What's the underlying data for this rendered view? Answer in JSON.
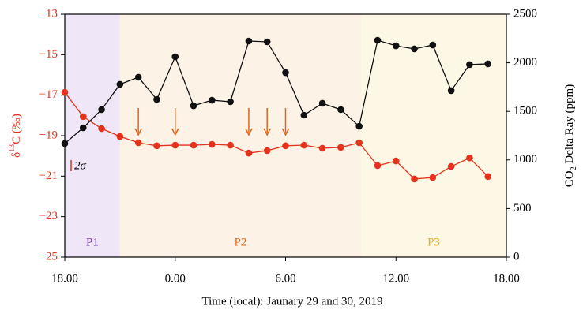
{
  "chart_data": {
    "type": "line",
    "x_label": "Time (local): Jaunary 29 and 30, 2019",
    "y_label": {
      "prefix": "δ",
      "sup": "13",
      "suffix": "C (‰)"
    },
    "y2_label": {
      "prefix": "CO",
      "sub": "2",
      "suffix": " Delta Ray (ppm)"
    },
    "annotation": "2σ",
    "x": [
      0,
      1,
      2,
      3,
      4,
      5,
      6,
      7,
      8,
      9,
      10,
      11,
      12,
      13,
      14,
      15,
      16,
      17,
      18,
      19,
      20,
      21,
      22,
      23
    ],
    "xlim": [
      0,
      24
    ],
    "xticks": [
      {
        "value": 0,
        "label": "18.00"
      },
      {
        "value": 6,
        "label": "0.00"
      },
      {
        "value": 12,
        "label": "6.00"
      },
      {
        "value": 18,
        "label": "12.00"
      },
      {
        "value": 24,
        "label": "18.00"
      }
    ],
    "ylim": [
      -25,
      -13
    ],
    "yticks": [
      {
        "value": -25,
        "label": "−25"
      },
      {
        "value": -23,
        "label": "−23"
      },
      {
        "value": -21,
        "label": "−21"
      },
      {
        "value": -19,
        "label": "−19"
      },
      {
        "value": -17,
        "label": "−17"
      },
      {
        "value": -15,
        "label": "−15"
      },
      {
        "value": -13,
        "label": "−13"
      }
    ],
    "y2lim": [
      0,
      2500
    ],
    "y2ticks": [
      0,
      500,
      1000,
      1500,
      2000,
      2500
    ],
    "series": [
      {
        "name": "δ13C",
        "color": "#e5321c",
        "axis": "y",
        "values": [
          -16.86,
          -18.06,
          -18.65,
          -19.04,
          -19.35,
          -19.5,
          -19.47,
          -19.47,
          -19.43,
          -19.47,
          -19.86,
          -19.74,
          -19.5,
          -19.47,
          -19.62,
          -19.58,
          -19.35,
          -20.48,
          -20.25,
          -21.14,
          -21.07,
          -20.52,
          -20.1,
          -21.02
        ]
      },
      {
        "name": "CO2",
        "color": "#111111",
        "axis": "y2",
        "values": [
          1169,
          1331,
          1518,
          1778,
          1851,
          1623,
          2062,
          1558,
          1615,
          1599,
          2224,
          2216,
          1899,
          1461,
          1583,
          1518,
          1347,
          2232,
          2175,
          2143,
          2183,
          1713,
          1981,
          1989
        ]
      }
    ],
    "phases": [
      {
        "label": "P1",
        "start": 0,
        "end": 3,
        "color": "#efe7f8",
        "text_color": "#7b2fa8"
      },
      {
        "label": "P2",
        "start": 3,
        "end": 16.1,
        "color": "#fdf2e6",
        "text_color": "#e0661e"
      },
      {
        "label": "P3",
        "start": 16.1,
        "end": 24,
        "color": "#fdf8e6",
        "text_color": "#e3b21c"
      }
    ],
    "arrows_at": [
      4,
      6,
      10,
      11,
      12
    ],
    "arrow_color": "#e0661e"
  }
}
